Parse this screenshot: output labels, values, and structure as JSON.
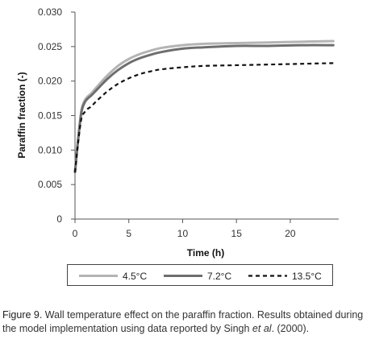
{
  "chart_data": {
    "type": "line",
    "xlabel": "Time (h)",
    "ylabel": "Paraffin fraction (-)",
    "xlim": [
      0,
      24.5
    ],
    "ylim": [
      0,
      0.03
    ],
    "xticks": [
      0,
      5,
      10,
      15,
      20
    ],
    "xtick_labels": [
      "0",
      "5",
      "10",
      "15",
      "20"
    ],
    "yticks": [
      0,
      0.005,
      0.01,
      0.015,
      0.02,
      0.025,
      0.03
    ],
    "ytick_labels": [
      "0",
      "0.005",
      "0.010",
      "0.015",
      "0.020",
      "0.025",
      "0.030"
    ],
    "grid": false,
    "legend_position": "bottom",
    "series": [
      {
        "name": "4.5°C",
        "color": "#b4b4b4",
        "style": "solid",
        "x": [
          0,
          0.3,
          0.6,
          0.9,
          1.2,
          1.5,
          2,
          3,
          4,
          5,
          6,
          7,
          8,
          10,
          12,
          15,
          18,
          21,
          24
        ],
        "y": [
          0.0068,
          0.0118,
          0.0158,
          0.0172,
          0.0178,
          0.0182,
          0.0191,
          0.0208,
          0.0222,
          0.0232,
          0.0239,
          0.0244,
          0.0248,
          0.0252,
          0.0254,
          0.0255,
          0.0256,
          0.0257,
          0.0258
        ]
      },
      {
        "name": "7.2°C",
        "color": "#6e6e6e",
        "style": "solid",
        "x": [
          0,
          0.3,
          0.6,
          0.9,
          1.2,
          1.5,
          2,
          3,
          4,
          5,
          6,
          7,
          8,
          10,
          12,
          15,
          18,
          21,
          24
        ],
        "y": [
          0.0068,
          0.0116,
          0.0155,
          0.0169,
          0.0175,
          0.0179,
          0.0187,
          0.0203,
          0.0216,
          0.0226,
          0.0233,
          0.0238,
          0.0242,
          0.0247,
          0.0249,
          0.0251,
          0.0251,
          0.0252,
          0.0252
        ]
      },
      {
        "name": "13.5°C",
        "color": "#111111",
        "style": "dashed",
        "x": [
          0,
          0.3,
          0.6,
          0.9,
          1.2,
          1.5,
          2,
          3,
          4,
          5,
          6,
          7,
          8,
          10,
          12,
          15,
          18,
          21,
          24
        ],
        "y": [
          0.0068,
          0.0112,
          0.0146,
          0.0155,
          0.016,
          0.0163,
          0.0171,
          0.0185,
          0.0196,
          0.0204,
          0.021,
          0.0214,
          0.0217,
          0.022,
          0.0222,
          0.0223,
          0.0224,
          0.0225,
          0.0226
        ]
      }
    ]
  },
  "caption": {
    "label": "Figure 9",
    "text_before_italic": ". Wall temperature effect on the paraffin fraction. Results obtained during the model implementation using data reported by Singh ",
    "italic": "et al",
    "text_after_italic": ". (2000)."
  }
}
